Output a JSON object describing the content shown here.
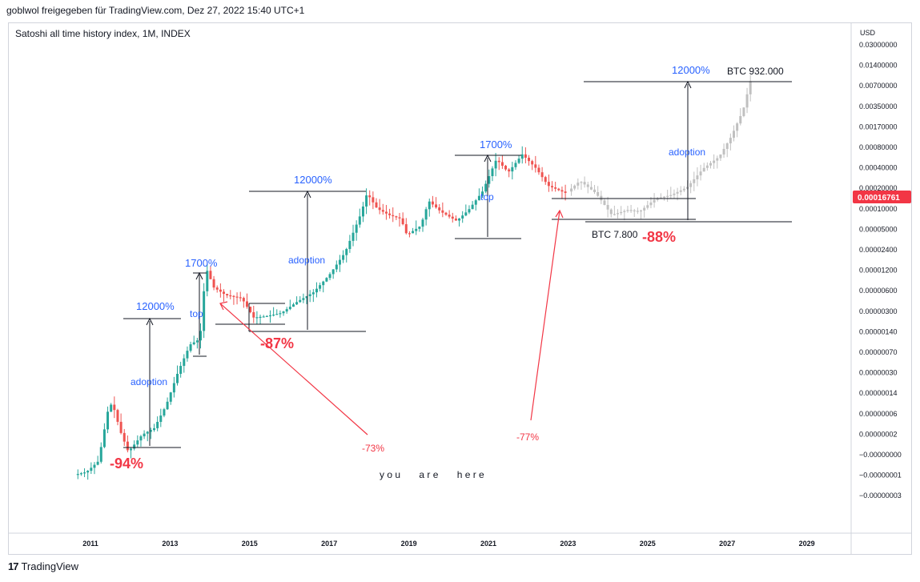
{
  "header": {
    "published_by": "goblwol freigegeben für TradingView.com, Dez 27, 2022 15:40 UTC+1",
    "symbol_title": "Satoshi all time history index, 1M, INDEX"
  },
  "footer": {
    "brand": "TradingView"
  },
  "colors": {
    "up_candle": "#26a69a",
    "down_candle": "#ef5350",
    "projection": "#c0c0c0",
    "annotation_blue": "#2962ff",
    "annotation_red": "#f23645",
    "price_tag": "#f23645"
  },
  "chart_data": {
    "type": "candlestick",
    "title": "Satoshi all time history index, 1M, INDEX",
    "currency": "USD",
    "x_ticks": [
      "2011",
      "2013",
      "2015",
      "2017",
      "2019",
      "2021",
      "2023",
      "2025",
      "2027",
      "2029"
    ],
    "y_ticks": [
      "0.03000000",
      "0.01400000",
      "0.00700000",
      "0.00350000",
      "0.00170000",
      "0.00080000",
      "0.00040000",
      "0.00020000",
      "0.00010000",
      "0.00005000",
      "0.00002400",
      "0.00001200",
      "0.00000600",
      "0.00000300",
      "0.00000140",
      "0.00000070",
      "0.00000030",
      "0.00000014",
      "0.00000006",
      "0.00000002",
      "−0.00000000",
      "−0.00000001",
      "−0.00000003"
    ],
    "current_price": "0.00016761",
    "price_path": [
      {
        "x": 2010.6,
        "y": 1e-08
      },
      {
        "x": 2010.9,
        "y": 1.1e-08
      },
      {
        "x": 2011.2,
        "y": 1.6e-08
      },
      {
        "x": 2011.45,
        "y": 1e-07
      },
      {
        "x": 2011.55,
        "y": 1.2e-07
      },
      {
        "x": 2011.75,
        "y": 4.5e-08
      },
      {
        "x": 2011.95,
        "y": 2.2e-08
      },
      {
        "x": 2012.3,
        "y": 4e-08
      },
      {
        "x": 2012.6,
        "y": 5e-08
      },
      {
        "x": 2012.9,
        "y": 1.1e-07
      },
      {
        "x": 2013.2,
        "y": 3.5e-07
      },
      {
        "x": 2013.5,
        "y": 9e-07
      },
      {
        "x": 2013.75,
        "y": 1.1e-06
      },
      {
        "x": 2013.9,
        "y": 1.3e-05
      },
      {
        "x": 2014.1,
        "y": 6.5e-06
      },
      {
        "x": 2014.4,
        "y": 5e-06
      },
      {
        "x": 2014.8,
        "y": 4.5e-06
      },
      {
        "x": 2015.1,
        "y": 2.3e-06
      },
      {
        "x": 2015.4,
        "y": 2.4e-06
      },
      {
        "x": 2015.8,
        "y": 2.7e-06
      },
      {
        "x": 2016.2,
        "y": 4e-06
      },
      {
        "x": 2016.6,
        "y": 5.5e-06
      },
      {
        "x": 2017.0,
        "y": 1e-05
      },
      {
        "x": 2017.4,
        "y": 2.2e-05
      },
      {
        "x": 2017.8,
        "y": 8.5e-05
      },
      {
        "x": 2017.95,
        "y": 0.00017
      },
      {
        "x": 2018.2,
        "y": 0.0001
      },
      {
        "x": 2018.5,
        "y": 8e-05
      },
      {
        "x": 2018.8,
        "y": 7e-05
      },
      {
        "x": 2018.95,
        "y": 4e-05
      },
      {
        "x": 2019.3,
        "y": 5.5e-05
      },
      {
        "x": 2019.5,
        "y": 0.00013
      },
      {
        "x": 2019.8,
        "y": 9e-05
      },
      {
        "x": 2020.2,
        "y": 6.5e-05
      },
      {
        "x": 2020.5,
        "y": 9.5e-05
      },
      {
        "x": 2020.85,
        "y": 0.00018
      },
      {
        "x": 2021.2,
        "y": 0.00055
      },
      {
        "x": 2021.5,
        "y": 0.00035
      },
      {
        "x": 2021.85,
        "y": 0.00065
      },
      {
        "x": 2022.2,
        "y": 0.0004
      },
      {
        "x": 2022.5,
        "y": 0.00022
      },
      {
        "x": 2022.95,
        "y": 0.00017
      }
    ],
    "projection_path": [
      {
        "x": 2023.0,
        "y": 0.00018
      },
      {
        "x": 2023.3,
        "y": 0.00026
      },
      {
        "x": 2023.7,
        "y": 0.00017
      },
      {
        "x": 2024.1,
        "y": 8e-05
      },
      {
        "x": 2024.5,
        "y": 9.5e-05
      },
      {
        "x": 2024.8,
        "y": 9e-05
      },
      {
        "x": 2025.2,
        "y": 0.00014
      },
      {
        "x": 2025.6,
        "y": 0.00016
      },
      {
        "x": 2026.0,
        "y": 0.00021
      },
      {
        "x": 2026.4,
        "y": 0.0004
      },
      {
        "x": 2026.8,
        "y": 0.0006
      },
      {
        "x": 2027.1,
        "y": 0.0012
      },
      {
        "x": 2027.4,
        "y": 0.003
      },
      {
        "x": 2027.6,
        "y": 0.009
      }
    ],
    "annotations": {
      "gains": [
        "12000%",
        "1700%",
        "12000%",
        "1700%",
        "12000%"
      ],
      "adoption": [
        "adoption",
        "adoption",
        "adoption"
      ],
      "top": [
        "top",
        "top"
      ],
      "drawdowns_big": [
        "-94%",
        "-87%",
        "-88%"
      ],
      "drawdowns_small": [
        "-73%",
        "-77%"
      ],
      "btc_low": "BTC 7.800",
      "btc_high": "BTC 932.000",
      "here_label": "y o u       a r e       h e r e"
    }
  }
}
